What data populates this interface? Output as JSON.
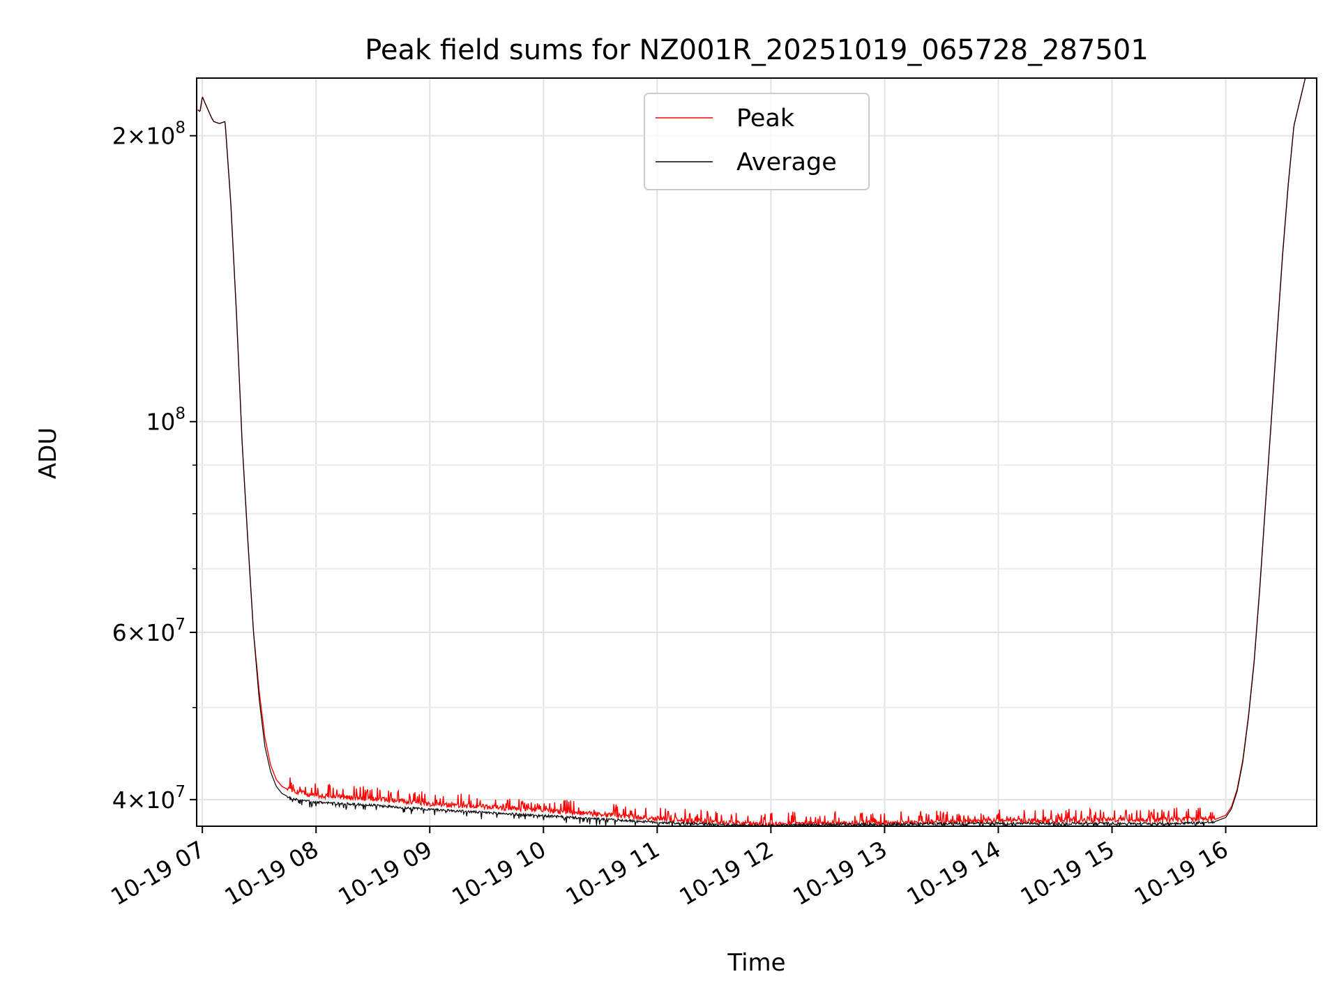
{
  "chart_data": {
    "type": "line",
    "title": "Peak field sums for NZ001R_20251019_065728_287501",
    "xlabel": "Time",
    "ylabel": "ADU",
    "y_scale": "log",
    "xlim": [
      6.95,
      16.8
    ],
    "ylim": [
      37500000,
      230000000
    ],
    "grid": true,
    "legend_position": "upper-center",
    "x_ticks": [
      {
        "value": 7,
        "label": "10-19 07"
      },
      {
        "value": 8,
        "label": "10-19 08"
      },
      {
        "value": 9,
        "label": "10-19 09"
      },
      {
        "value": 10,
        "label": "10-19 10"
      },
      {
        "value": 11,
        "label": "10-19 11"
      },
      {
        "value": 12,
        "label": "10-19 12"
      },
      {
        "value": 13,
        "label": "10-19 13"
      },
      {
        "value": 14,
        "label": "10-19 14"
      },
      {
        "value": 15,
        "label": "10-19 15"
      },
      {
        "value": 16,
        "label": "10-19 16"
      }
    ],
    "y_major_ticks": [
      {
        "value": 40000000,
        "mantissa": "4",
        "exponent": "7"
      },
      {
        "value": 60000000,
        "mantissa": "6",
        "exponent": "7"
      },
      {
        "value": 100000000,
        "mantissa": "",
        "exponent": "8"
      },
      {
        "value": 200000000,
        "mantissa": "2",
        "exponent": "8"
      }
    ],
    "y_minor_ticks": [
      50000000,
      70000000,
      80000000,
      90000000
    ],
    "series": [
      {
        "name": "Peak",
        "color": "#ff0000",
        "x": [
          6.96,
          6.98,
          7.0,
          7.02,
          7.05,
          7.08,
          7.1,
          7.15,
          7.2,
          7.25,
          7.3,
          7.35,
          7.4,
          7.45,
          7.5,
          7.55,
          7.6,
          7.65,
          7.7,
          7.75,
          7.8,
          7.9,
          8.0,
          8.5,
          9.0,
          9.5,
          10.0,
          10.5,
          11.0,
          11.5,
          11.9,
          12.0,
          12.5,
          13.0,
          13.5,
          14.0,
          14.5,
          15.0,
          15.5,
          15.9,
          16.0,
          16.05,
          16.1,
          16.15,
          16.2,
          16.25,
          16.3,
          16.35,
          16.4,
          16.45,
          16.5,
          16.55,
          16.6,
          16.7
        ],
        "values": [
          213000000,
          212000000,
          220000000,
          217000000,
          213000000,
          209000000,
          207000000,
          206000000,
          207000000,
          170000000,
          130000000,
          95000000,
          75000000,
          60000000,
          52000000,
          46500000,
          43500000,
          42000000,
          41300000,
          41000000,
          40800000,
          40500000,
          40300000,
          40000000,
          39500000,
          39200000,
          38900000,
          38500000,
          38100000,
          37800000,
          37600000,
          37600000,
          37700000,
          37700000,
          37800000,
          37900000,
          37900000,
          38000000,
          38000000,
          38100000,
          38500000,
          39300000,
          41000000,
          44000000,
          49000000,
          56000000,
          67000000,
          82000000,
          100000000,
          123000000,
          150000000,
          178000000,
          205000000,
          230000000
        ]
      },
      {
        "name": "Average",
        "color": "#000000",
        "x": [
          6.96,
          6.98,
          7.0,
          7.02,
          7.05,
          7.08,
          7.1,
          7.15,
          7.2,
          7.25,
          7.3,
          7.35,
          7.4,
          7.45,
          7.5,
          7.55,
          7.6,
          7.65,
          7.7,
          7.75,
          7.8,
          7.9,
          8.0,
          8.5,
          9.0,
          9.5,
          10.0,
          10.5,
          11.0,
          11.5,
          11.9,
          12.0,
          12.5,
          13.0,
          13.5,
          14.0,
          14.5,
          15.0,
          15.5,
          15.9,
          16.0,
          16.05,
          16.1,
          16.15,
          16.2,
          16.25,
          16.3,
          16.35,
          16.4,
          16.45,
          16.5,
          16.55,
          16.6,
          16.7
        ],
        "values": [
          213000000,
          212000000,
          220000000,
          217000000,
          213000000,
          209000000,
          207000000,
          206000000,
          207000000,
          170000000,
          130000000,
          95000000,
          75000000,
          60000000,
          51000000,
          45500000,
          42800000,
          41300000,
          40600000,
          40300000,
          40100000,
          39900000,
          39800000,
          39500000,
          39100000,
          38800000,
          38500000,
          38200000,
          37900000,
          37700000,
          37600000,
          37600000,
          37700000,
          37700000,
          37800000,
          37800000,
          37800000,
          37800000,
          37800000,
          37900000,
          38300000,
          39100000,
          40800000,
          43800000,
          48800000,
          55800000,
          66800000,
          81800000,
          99800000,
          122500000,
          149500000,
          177500000,
          205000000,
          230000000
        ]
      }
    ]
  }
}
